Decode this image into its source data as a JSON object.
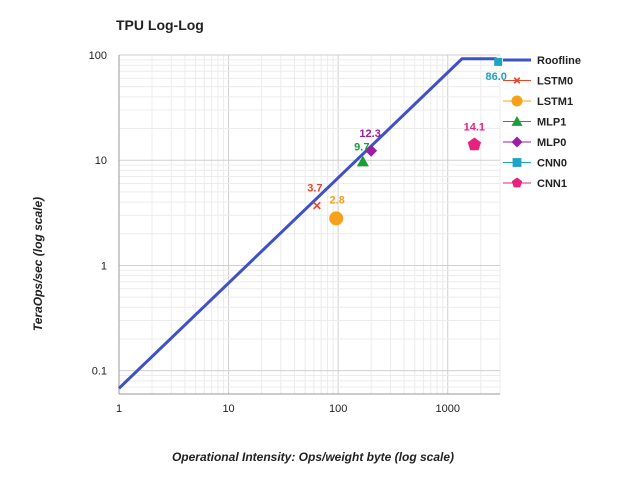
{
  "chart_data": {
    "type": "scatter",
    "title": "TPU Log-Log",
    "xlabel": "Operational Intensity: Ops/weight byte (log scale)",
    "ylabel": "TeraOps/sec (log scale)",
    "x_scale": "log",
    "y_scale": "log",
    "xlim": [
      1,
      3000
    ],
    "ylim": [
      0.06,
      100
    ],
    "x_ticks": [
      {
        "value": 1,
        "label": "1"
      },
      {
        "value": 10,
        "label": "10"
      },
      {
        "value": 100,
        "label": "100"
      },
      {
        "value": 1000,
        "label": "1000"
      }
    ],
    "y_ticks": [
      {
        "value": 0.1,
        "label": "0.1"
      },
      {
        "value": 1,
        "label": "1"
      },
      {
        "value": 10,
        "label": "10"
      },
      {
        "value": 100,
        "label": "100"
      }
    ],
    "grid": true,
    "legend_position": "right",
    "roofline": {
      "name": "Roofline",
      "color": "#3f51c8",
      "x": [
        1,
        1350,
        2800
      ],
      "y": [
        0.068,
        92,
        92
      ]
    },
    "series": [
      {
        "name": "LSTM0",
        "marker": "x",
        "color": "#e8442a",
        "x": 64,
        "y": 3.7,
        "label": "3.7"
      },
      {
        "name": "LSTM1",
        "marker": "circle",
        "color": "#f7a11a",
        "x": 96,
        "y": 2.8,
        "label": "2.8"
      },
      {
        "name": "MLP1",
        "marker": "triangle",
        "color": "#1a9e3a",
        "x": 168,
        "y": 9.7,
        "label": "9.7"
      },
      {
        "name": "MLP0",
        "marker": "diamond",
        "color": "#9c1fa3",
        "x": 200,
        "y": 12.3,
        "label": "12.3"
      },
      {
        "name": "CNN0",
        "marker": "square",
        "color": "#1fa2c4",
        "x": 2888,
        "y": 86.0,
        "label": "86.0"
      },
      {
        "name": "CNN1",
        "marker": "pentagon",
        "color": "#e8217f",
        "x": 1750,
        "y": 14.1,
        "label": "14.1"
      }
    ]
  }
}
